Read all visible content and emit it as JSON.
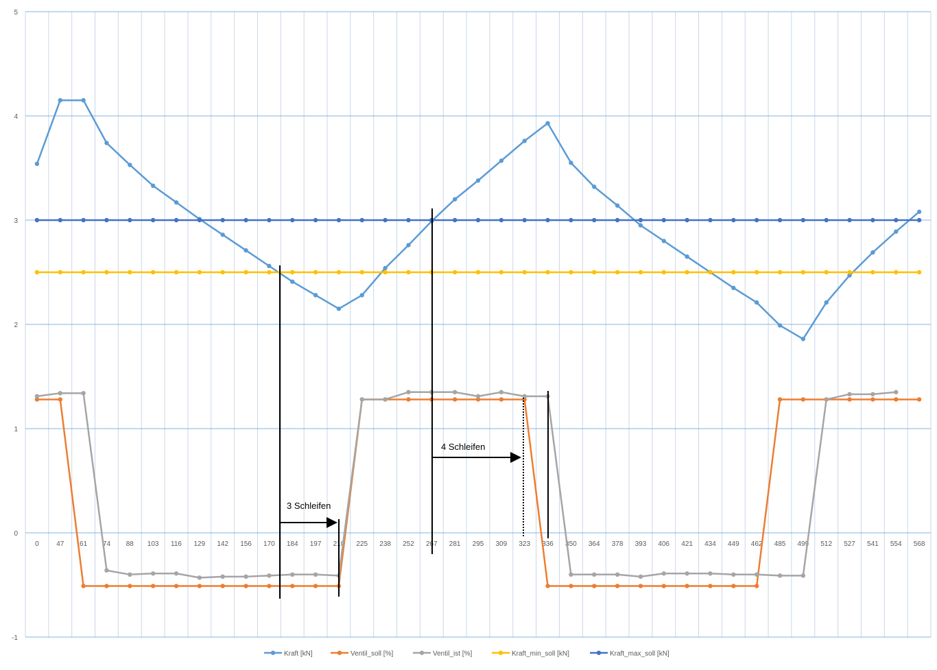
{
  "colors": {
    "kraft": "#5B9BD5",
    "ventil_soll": "#ED7D31",
    "ventil_ist": "#A5A5A5",
    "kraft_min_soll": "#FFC000",
    "kraft_max_soll": "#4472C4",
    "gridline_h": "#5B9BD5",
    "gridline_v": "#C9D7E8",
    "annotation": "#000000"
  },
  "chart_data": {
    "type": "line",
    "title": "",
    "xlabel": "",
    "ylabel": "",
    "ylim": [
      -1,
      5
    ],
    "yticks": [
      "-1",
      "0",
      "1",
      "2",
      "3",
      "4",
      "5"
    ],
    "grid": true,
    "legend_placement": "bottom",
    "categories": [
      "0",
      "47",
      "61",
      "74",
      "88",
      "103",
      "116",
      "129",
      "142",
      "156",
      "170",
      "184",
      "197",
      "210",
      "225",
      "238",
      "252",
      "267",
      "281",
      "295",
      "309",
      "323",
      "336",
      "350",
      "364",
      "378",
      "393",
      "406",
      "421",
      "434",
      "449",
      "462",
      "485",
      "499",
      "512",
      "527",
      "541",
      "554",
      "568"
    ],
    "series": [
      {
        "name": "Kraft [kN]",
        "color_key": "kraft",
        "values": [
          3.54,
          4.15,
          4.15,
          3.74,
          3.53,
          3.33,
          3.17,
          3.01,
          2.86,
          2.71,
          2.56,
          2.41,
          2.28,
          2.15,
          2.28,
          2.54,
          2.76,
          2.99,
          3.2,
          3.38,
          3.57,
          3.76,
          3.93,
          3.55,
          3.32,
          3.14,
          2.95,
          2.8,
          2.65,
          2.5,
          2.35,
          2.21,
          1.99,
          1.86,
          2.21,
          2.47,
          2.69,
          2.89,
          3.08
        ]
      },
      {
        "name": "Ventil_soll [%]",
        "color_key": "ventil_soll",
        "values": [
          1.28,
          1.28,
          -0.51,
          -0.51,
          -0.51,
          -0.51,
          -0.51,
          -0.51,
          -0.51,
          -0.51,
          -0.51,
          -0.51,
          -0.51,
          -0.51,
          1.28,
          1.28,
          1.28,
          1.28,
          1.28,
          1.28,
          1.28,
          1.28,
          -0.51,
          -0.51,
          -0.51,
          -0.51,
          -0.51,
          -0.51,
          -0.51,
          -0.51,
          -0.51,
          -0.51,
          1.28,
          1.28,
          1.28,
          1.28,
          1.28,
          1.28,
          1.28
        ]
      },
      {
        "name": "Ventil_ist [%]",
        "color_key": "ventil_ist",
        "values": [
          1.31,
          1.34,
          1.34,
          -0.36,
          -0.4,
          -0.39,
          -0.39,
          -0.43,
          -0.42,
          -0.42,
          -0.41,
          -0.4,
          -0.4,
          -0.41,
          1.28,
          1.28,
          1.35,
          1.35,
          1.35,
          1.31,
          1.35,
          1.31,
          1.31,
          -0.4,
          -0.4,
          -0.4,
          -0.42,
          -0.39,
          -0.39,
          -0.39,
          -0.4,
          -0.4,
          -0.41,
          -0.41,
          1.28,
          1.33,
          1.33,
          1.35,
          null
        ]
      },
      {
        "name": "Kraft_min_soll [kN]",
        "color_key": "kraft_min_soll",
        "values": [
          2.5,
          2.5,
          2.5,
          2.5,
          2.5,
          2.5,
          2.5,
          2.5,
          2.5,
          2.5,
          2.5,
          2.5,
          2.5,
          2.5,
          2.5,
          2.5,
          2.5,
          2.5,
          2.5,
          2.5,
          2.5,
          2.5,
          2.5,
          2.5,
          2.5,
          2.5,
          2.5,
          2.5,
          2.5,
          2.5,
          2.5,
          2.5,
          2.5,
          2.5,
          2.5,
          2.5,
          2.5,
          2.5,
          2.5
        ]
      },
      {
        "name": "Kraft_max_soll [kN]",
        "color_key": "kraft_max_soll",
        "values": [
          3,
          3,
          3,
          3,
          3,
          3,
          3,
          3,
          3,
          3,
          3,
          3,
          3,
          3,
          3,
          3,
          3,
          3,
          3,
          3,
          3,
          3,
          3,
          3,
          3,
          3,
          3,
          3,
          3,
          3,
          3,
          3,
          3,
          3,
          3,
          3,
          3,
          3,
          3
        ]
      }
    ],
    "annotations": [
      {
        "label": "3 Schleifen"
      },
      {
        "label": "4 Schleifen"
      }
    ]
  }
}
